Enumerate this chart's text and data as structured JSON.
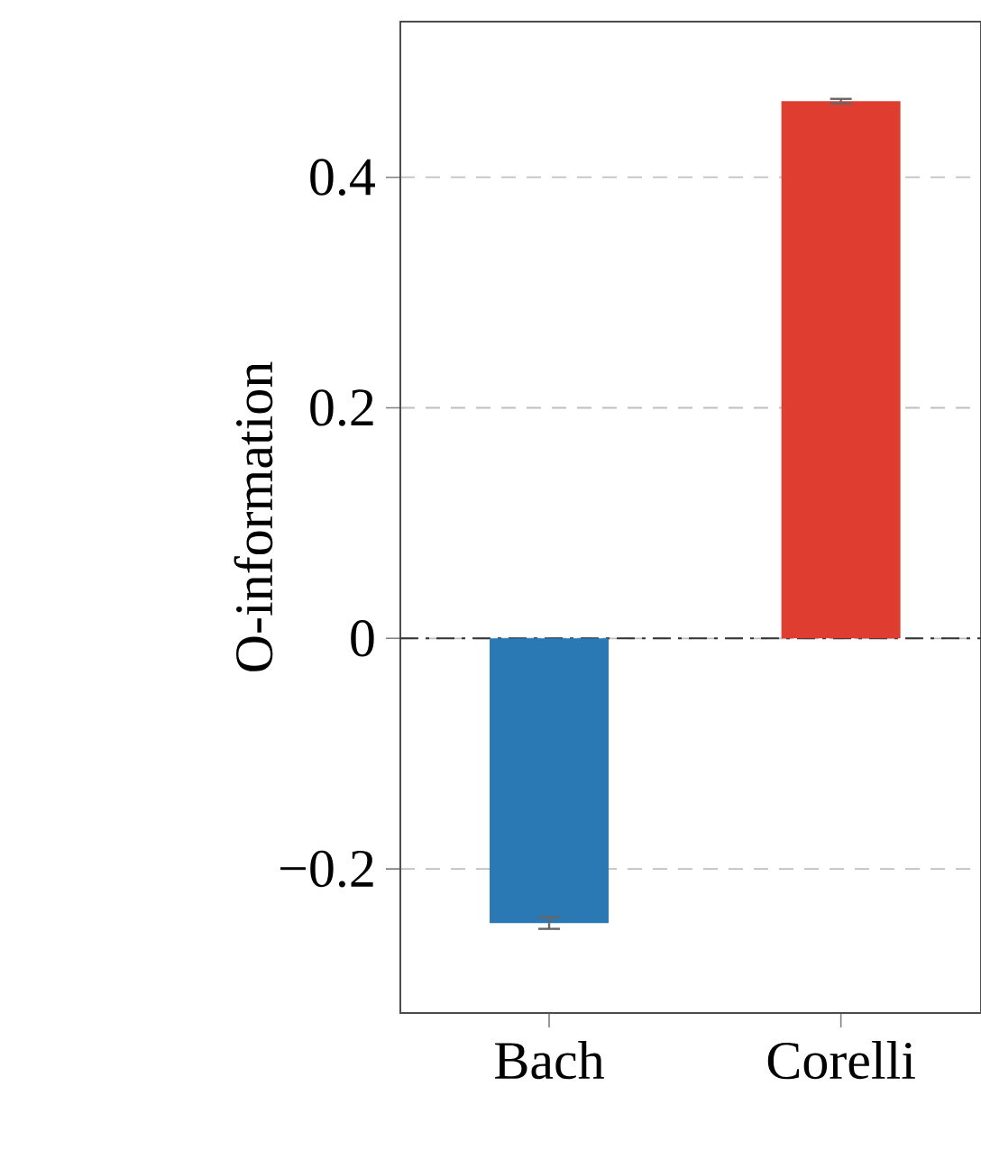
{
  "chart_data": {
    "type": "bar",
    "ylabel": "O-information",
    "categories": [
      "Bach",
      "Corelli"
    ],
    "values": [
      -0.247,
      0.466
    ],
    "colors": [
      "#2a78b4",
      "#e03d31"
    ],
    "errors": [
      0.005,
      0.002
    ],
    "ylim": [
      -0.325,
      0.535
    ],
    "yticks": [
      {
        "value": -0.2,
        "label": "−0.2"
      },
      0,
      0.2,
      0.4
    ],
    "grid": "y",
    "ref_lines": [
      {
        "axis": "y",
        "value": 0,
        "color": "#333333",
        "line_style": "dashdot"
      }
    ]
  }
}
